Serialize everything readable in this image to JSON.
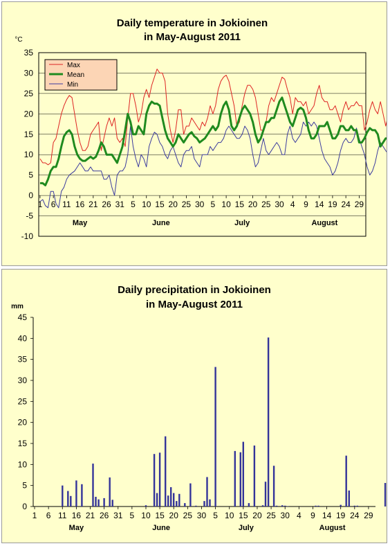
{
  "chart_data": [
    {
      "type": "line",
      "title": "Daily temperature in Jokioinen",
      "subtitle": "in May-August 2011",
      "ylabel": "°C",
      "ylim": [
        -10,
        35
      ],
      "yticks": [
        -10,
        -5,
        0,
        5,
        10,
        15,
        20,
        25,
        30,
        35
      ],
      "grid": true,
      "legend_position": "top-left",
      "x_tick_labels": [
        "1",
        "6",
        "11",
        "16",
        "21",
        "26",
        "31",
        "5",
        "10",
        "15",
        "20",
        "25",
        "30",
        "5",
        "10",
        "15",
        "20",
        "25",
        "30",
        "4",
        "9",
        "14",
        "19",
        "24",
        "29"
      ],
      "months": [
        "May",
        "June",
        "July",
        "August"
      ],
      "series": [
        {
          "name": "Max",
          "color": "#dd2222",
          "values": [
            9,
            8,
            8,
            7.5,
            8,
            13,
            14,
            17,
            20,
            22,
            23.5,
            24.5,
            24,
            20,
            16,
            13,
            11,
            11,
            12,
            15,
            16,
            17,
            18,
            11,
            14,
            17,
            19,
            17,
            19,
            14,
            13,
            14,
            12,
            19,
            25,
            25,
            22,
            18,
            20,
            24,
            26,
            24,
            27,
            29,
            31,
            30,
            30,
            28,
            20,
            16,
            13,
            16,
            21,
            21,
            15,
            17,
            17,
            19,
            18,
            17,
            16,
            18,
            17,
            19,
            22,
            20,
            22,
            26,
            28,
            29,
            29.5,
            28,
            25,
            22,
            17,
            18,
            22,
            25,
            27,
            27,
            26,
            24,
            20,
            16,
            16,
            18,
            22,
            24,
            23,
            25,
            27,
            29,
            28.5,
            26,
            24,
            20,
            24,
            23,
            23,
            22,
            23,
            20,
            21,
            22,
            25,
            27,
            24,
            23,
            23,
            21,
            21,
            22,
            20,
            18,
            21,
            23,
            21,
            22,
            22,
            23,
            22,
            22,
            16,
            18,
            21,
            23,
            21,
            20,
            23,
            20,
            17,
            20,
            22,
            21,
            19,
            20,
            21,
            22,
            21,
            22,
            23,
            25,
            25.5,
            24,
            20,
            17,
            16.5,
            16.5,
            16.5
          ]
        },
        {
          "name": "Mean",
          "color": "#1f8a1f",
          "values": [
            3,
            3,
            2.5,
            4,
            6,
            7,
            7,
            9,
            12,
            14.5,
            15.5,
            16,
            15,
            12,
            10,
            9,
            8.5,
            8.5,
            9,
            9.5,
            9,
            9.5,
            11,
            13,
            12,
            10,
            10,
            10,
            9,
            8,
            10,
            12,
            16,
            20,
            18,
            15,
            15,
            17,
            16,
            15,
            20,
            22,
            23,
            22.5,
            22.5,
            22,
            19,
            16,
            14,
            13,
            12,
            13,
            15,
            14,
            13,
            14,
            15,
            15.5,
            14.5,
            14,
            13,
            13.5,
            14,
            15,
            16,
            17,
            16,
            17,
            20,
            22,
            23,
            21,
            17,
            16,
            17,
            19,
            21,
            22,
            21,
            20,
            18,
            15,
            13,
            14,
            16,
            18,
            18,
            19,
            19,
            21,
            23,
            24,
            22,
            20,
            18,
            17,
            19,
            21,
            21.5,
            21,
            19,
            16,
            14,
            14,
            15,
            17,
            17,
            17,
            18,
            16,
            14,
            14,
            15,
            17,
            17,
            16,
            16,
            17,
            16,
            16,
            13,
            13,
            14,
            15.5,
            16.5,
            16,
            16,
            15,
            12,
            13,
            14,
            14,
            15,
            15,
            16,
            16,
            15,
            15,
            16,
            18,
            20,
            20,
            18,
            15,
            13,
            13,
            13
          ]
        },
        {
          "name": "Min",
          "color": "#3b3b9e",
          "values": [
            -1.5,
            -1,
            -2.5,
            -3,
            1,
            1,
            -2,
            -3,
            1,
            2,
            4,
            5,
            5.5,
            6,
            7,
            8,
            7,
            6,
            6,
            7,
            6,
            6,
            6,
            6,
            4,
            4,
            5,
            2,
            0,
            5,
            6,
            6,
            7,
            10,
            17,
            12,
            9,
            7,
            10,
            9,
            7,
            12,
            14,
            15.5,
            15,
            13,
            12,
            10,
            9,
            11,
            12,
            10,
            8,
            7,
            10,
            11,
            11,
            12,
            9,
            8,
            7,
            10,
            10,
            10,
            12,
            11,
            12,
            13,
            13,
            14,
            16,
            17,
            16,
            15,
            14,
            14,
            15,
            17,
            16,
            14,
            10,
            7,
            8,
            11,
            14,
            11,
            10,
            11,
            12,
            13,
            12,
            10,
            10,
            15,
            17,
            14,
            13,
            14,
            15,
            18,
            17,
            18,
            17,
            18,
            17,
            14,
            11,
            9,
            8,
            7,
            5,
            6,
            8,
            11,
            13,
            14,
            13,
            13,
            14,
            16.5,
            14,
            12,
            10,
            7,
            5,
            6,
            8,
            11,
            13,
            12,
            11,
            10,
            11,
            13,
            14,
            13,
            11,
            9,
            9,
            10,
            13,
            15,
            14,
            12,
            10,
            9,
            11,
            12.5
          ]
        }
      ]
    },
    {
      "type": "bar",
      "title": "Daily precipitation in Jokioinen",
      "subtitle": "in May-August 2011",
      "ylabel": "mm",
      "ylim": [
        0,
        45
      ],
      "yticks": [
        0,
        5,
        10,
        15,
        20,
        25,
        30,
        35,
        40,
        45
      ],
      "grid": false,
      "color": "#333399",
      "x_tick_labels": [
        "1",
        "6",
        "11",
        "16",
        "21",
        "26",
        "31",
        "5",
        "10",
        "15",
        "20",
        "25",
        "30",
        "5",
        "10",
        "15",
        "20",
        "25",
        "30",
        "4",
        "9",
        "14",
        "19",
        "24",
        "29"
      ],
      "months": [
        "May",
        "June",
        "July",
        "August"
      ],
      "day_index": [
        11,
        13,
        14,
        16,
        18,
        22,
        23,
        24,
        26,
        28,
        29,
        41,
        44,
        45,
        46,
        48,
        49,
        50,
        51,
        52,
        53,
        55,
        57,
        59,
        62,
        63,
        64,
        66,
        73,
        75,
        76,
        78,
        80,
        83,
        84,
        85,
        87,
        88,
        90,
        91,
        92,
        102,
        103,
        111,
        113,
        114,
        116,
        117,
        127,
        128,
        129,
        140,
        141,
        150,
        151,
        152
      ],
      "values": [
        5,
        3.7,
        2.5,
        6.2,
        5.3,
        10.2,
        2.3,
        1.7,
        2,
        6.9,
        1.6,
        0.3,
        12.5,
        3.2,
        12.8,
        16.7,
        2.6,
        4.6,
        3.2,
        1.3,
        3,
        0.8,
        5.5,
        0.2,
        1.3,
        7,
        1.7,
        33.2,
        13.2,
        12.9,
        15.4,
        0.8,
        14.5,
        0.3,
        5.9,
        40.2,
        9.7,
        0.2,
        0.3,
        0.2,
        0.1,
        0.2,
        0.2,
        0.4,
        12.1,
        3.8,
        0.2,
        0.2,
        5.6,
        0.2,
        5.4,
        0.6,
        0.2,
        2,
        0.6,
        1.4
      ]
    }
  ]
}
